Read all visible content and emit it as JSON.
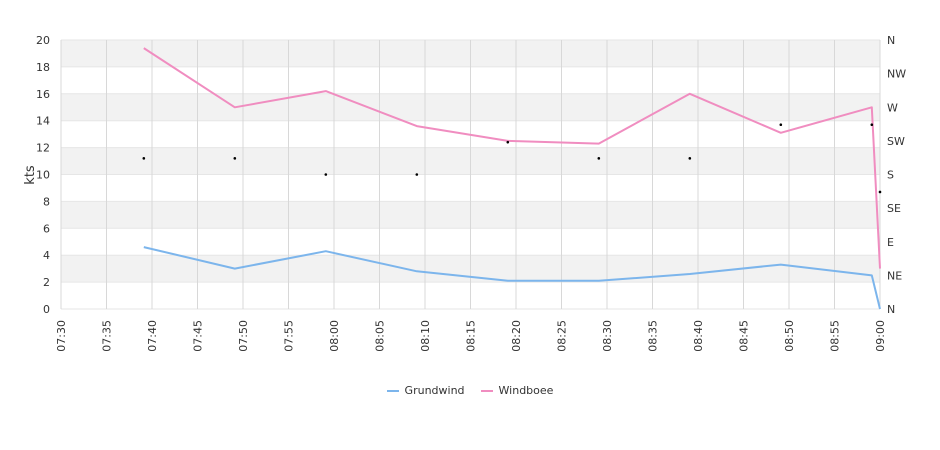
{
  "chart_data": {
    "type": "line",
    "ylabel": "kts",
    "ylim": [
      0,
      20
    ],
    "yticks": [
      0,
      2,
      4,
      6,
      8,
      10,
      12,
      14,
      16,
      18,
      20
    ],
    "y2ticks": [
      "N",
      "NE",
      "E",
      "SE",
      "S",
      "SW",
      "W",
      "NW",
      "N"
    ],
    "x_ticks": [
      "07:30",
      "07:35",
      "07:40",
      "07:45",
      "07:50",
      "07:55",
      "08:00",
      "08:05",
      "08:10",
      "08:15",
      "08:20",
      "08:25",
      "08:30",
      "08:35",
      "08:40",
      "08:45",
      "08:50",
      "08:55",
      "09:00"
    ],
    "xrange_minutes": [
      0,
      90
    ],
    "grid": true,
    "legend_position": "bottom",
    "series": [
      {
        "name": "Grundwind",
        "color": "#7cb5ec",
        "points": [
          [
            9.1,
            4.6
          ],
          [
            19.1,
            3.0
          ],
          [
            29.1,
            4.3
          ],
          [
            39.1,
            2.8
          ],
          [
            49.1,
            2.1
          ],
          [
            59.1,
            2.1
          ],
          [
            69.1,
            2.6
          ],
          [
            79.1,
            3.3
          ],
          [
            89.1,
            2.5
          ],
          [
            90,
            0.0
          ]
        ]
      },
      {
        "name": "Windboee",
        "color": "#f08dc0",
        "points": [
          [
            9.1,
            19.4
          ],
          [
            19.1,
            15.0
          ],
          [
            29.1,
            16.2
          ],
          [
            39.1,
            13.6
          ],
          [
            49.1,
            12.5
          ],
          [
            59.1,
            12.3
          ],
          [
            69.1,
            16.0
          ],
          [
            79.1,
            13.1
          ],
          [
            89.1,
            15.0
          ],
          [
            90,
            3.0
          ]
        ]
      }
    ],
    "direction_markers": [
      [
        9.1,
        11.2
      ],
      [
        19.1,
        11.2
      ],
      [
        29.1,
        10.0
      ],
      [
        39.1,
        10.0
      ],
      [
        49.1,
        12.4
      ],
      [
        59.1,
        11.2
      ],
      [
        69.1,
        11.2
      ],
      [
        79.1,
        13.7
      ],
      [
        89.1,
        13.7
      ],
      [
        90,
        8.7
      ]
    ]
  }
}
